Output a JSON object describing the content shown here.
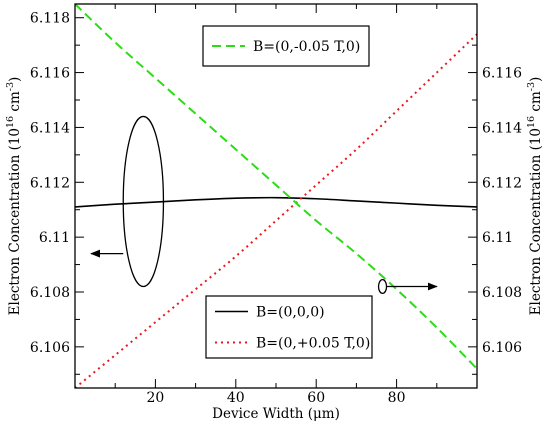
{
  "chart_data": {
    "type": "line",
    "xlabel": "Device Width (μm)",
    "ylabel_left": {
      "main": "Electron Concentration (10",
      "exp1": "16",
      "mid": " cm",
      "exp2": "-3",
      "end": ")"
    },
    "ylabel_right": {
      "main": "Electron Concentration (10",
      "exp1": "16",
      "mid": " cm",
      "exp2": "-3",
      "end": ")"
    },
    "xlim": [
      0,
      100
    ],
    "ylim_left": [
      6.1045,
      6.1185
    ],
    "ylim_right": [
      6.1045,
      6.1185
    ],
    "x_ticks": [
      20,
      40,
      60,
      80
    ],
    "y_ticks_left": [
      6.106,
      6.108,
      6.11,
      6.112,
      6.114,
      6.116,
      6.118
    ],
    "y_ticks_right": [
      6.106,
      6.108,
      6.11,
      6.112,
      6.114,
      6.116
    ],
    "legends": [
      {
        "position": "top-center",
        "entries": [
          {
            "label": "B=(0,-0.05 T,0)",
            "series": 2
          }
        ]
      },
      {
        "position": "bottom-center",
        "entries": [
          {
            "label": "B=(0,0,0)",
            "series": 0
          },
          {
            "label": "B=(0,+0.05 T,0)",
            "series": 1
          }
        ]
      }
    ],
    "series": [
      {
        "axis": "left",
        "color": "#000000",
        "dash": "solid",
        "x": [
          0,
          10,
          20,
          30,
          40,
          50,
          60,
          70,
          80,
          90,
          100
        ],
        "values": [
          6.1111,
          6.1112,
          6.11128,
          6.11136,
          6.11142,
          6.11144,
          6.1114,
          6.11132,
          6.11124,
          6.11116,
          6.1111
        ]
      },
      {
        "axis": "right",
        "color": "#e8191b",
        "dash": "dotted",
        "x": [
          0,
          10,
          20,
          30,
          40,
          50,
          60,
          70,
          80,
          90,
          100
        ],
        "values": [
          6.1045,
          6.1057,
          6.1069,
          6.1081,
          6.1093,
          6.1106,
          6.1119,
          6.1132,
          6.1146,
          6.116,
          6.1174
        ]
      },
      {
        "axis": "left",
        "color": "#2cdc16",
        "dash": "dashed",
        "x": [
          0,
          10,
          20,
          30,
          40,
          50,
          60,
          70,
          80,
          90,
          100
        ],
        "values": [
          6.1185,
          6.1171,
          6.1158,
          6.1145,
          6.1132,
          6.1119,
          6.1106,
          6.1094,
          6.1081,
          6.1067,
          6.1052
        ]
      }
    ],
    "annotations": [
      {
        "type": "ellipse-arrow",
        "cx": 17,
        "cy": 6.1113,
        "rx_data": 5,
        "ry_data": 0.0031,
        "arrow_direction": "left",
        "arrow_to_x": 4,
        "arrow_y": 6.1094
      },
      {
        "type": "ellipse-arrow",
        "cx": 76.5,
        "cy": 6.1082,
        "rx_data": 1,
        "ry_data": 0.00025,
        "arrow_direction": "right",
        "arrow_to_x": 90,
        "arrow_y": 6.1082
      }
    ]
  }
}
